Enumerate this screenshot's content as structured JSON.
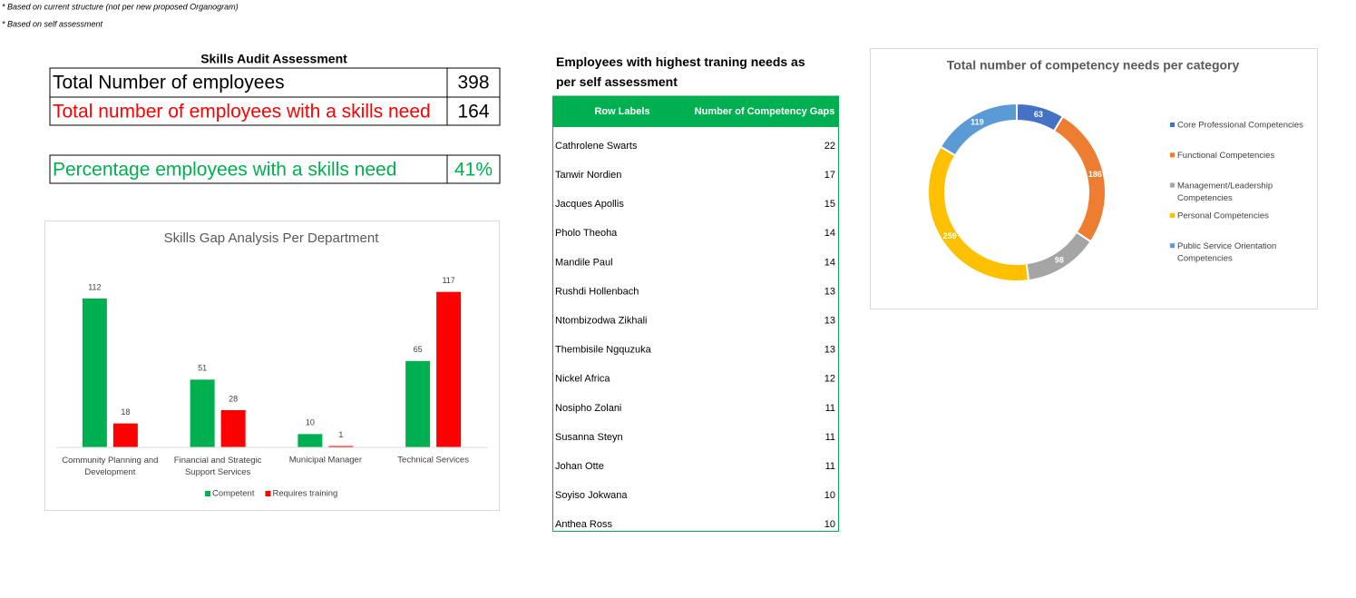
{
  "notes": [
    "* Based on current structure (not per new proposed Organogram)",
    "* Based on self assessment"
  ],
  "summary": {
    "title": "Skills Audit Assessment",
    "rows": [
      [
        "Total Number of employees",
        398
      ],
      [
        "Total number of employees with a skills need",
        164
      ]
    ],
    "percentage": [
      "Percentage employees with a skills need",
      "41%"
    ]
  },
  "table": {
    "title": "Employees with highest traning needs as per self assessment",
    "header": [
      "Row Labels",
      "Number of Competency Gaps"
    ],
    "rows": [
      [
        "Cathrolene Swarts",
        22
      ],
      [
        "Tanwir Nordien",
        17
      ],
      [
        "Jacques Apollis",
        15
      ],
      [
        "Pholo Theoha",
        14
      ],
      [
        "Mandile Paul",
        14
      ],
      [
        "Rushdi Hollenbach",
        13
      ],
      [
        "Ntombizodwa Zikhali",
        13
      ],
      [
        "Thembisile Ngquzuka",
        13
      ],
      [
        "Nickel Africa",
        12
      ],
      [
        "Nosipho Zolani",
        11
      ],
      [
        "Susanna Steyn",
        11
      ],
      [
        "Johan Otte",
        11
      ],
      [
        "Soyiso Jokwana",
        10
      ],
      [
        "Anthea Ross",
        10
      ]
    ]
  },
  "chart_data": [
    {
      "type": "bar",
      "title": "Skills Gap Analysis Per Department",
      "categories": [
        "Community Planning and Development",
        "Financial and Strategic Support Services",
        "Municipal Manager",
        "Technical Services"
      ],
      "series": [
        {
          "name": "Competent",
          "color": "#00b050",
          "values": [
            112,
            51,
            10,
            65
          ]
        },
        {
          "name": "Requires training",
          "color": "#ff0000",
          "values": [
            18,
            28,
            1,
            117
          ]
        }
      ],
      "ylim": [
        0,
        140
      ],
      "legend": "bottom"
    },
    {
      "type": "donut",
      "title": "Total number of competency needs per category",
      "categories": [
        "Core Professional Competencies",
        "Functional Competencies",
        "Management/Leadership Competencies",
        "Personal Competencies",
        "Public Service Orientation Competencies"
      ],
      "values": [
        63,
        186,
        98,
        259,
        119
      ],
      "colors": [
        "#4472c4",
        "#ed7d31",
        "#a5a5a5",
        "#ffc000",
        "#5b9bd5"
      ],
      "legend": "right"
    }
  ]
}
